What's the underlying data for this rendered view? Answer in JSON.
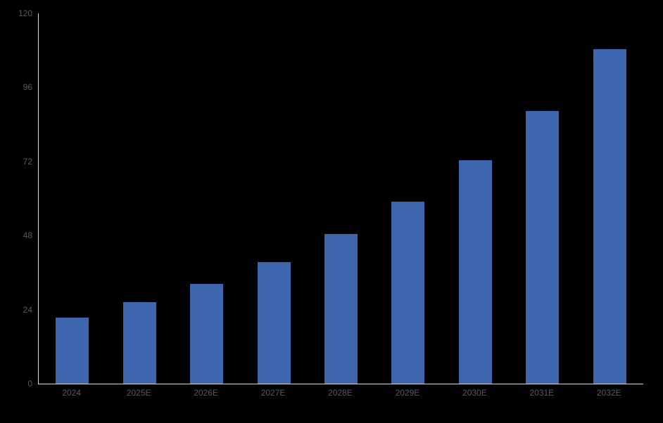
{
  "chart_data": {
    "type": "bar",
    "title": "",
    "xlabel": "",
    "ylabel": "",
    "categories": [
      "2024",
      "2025E",
      "2026E",
      "2027E",
      "2028E",
      "2029E",
      "2030E",
      "2031E",
      "2032E"
    ],
    "values": [
      21.4,
      26.3,
      32.3,
      39.5,
      48.4,
      59.0,
      72.3,
      88.4,
      108.4
    ],
    "ylim": [
      0,
      120
    ],
    "yticks": [
      0,
      24,
      48,
      72,
      96,
      120
    ],
    "grid": "off",
    "legend": "none",
    "colors": {
      "bar": "#3d66ae",
      "axis_line": "#d9d9d9",
      "tick_label": "#595959",
      "background": "#000000"
    }
  }
}
